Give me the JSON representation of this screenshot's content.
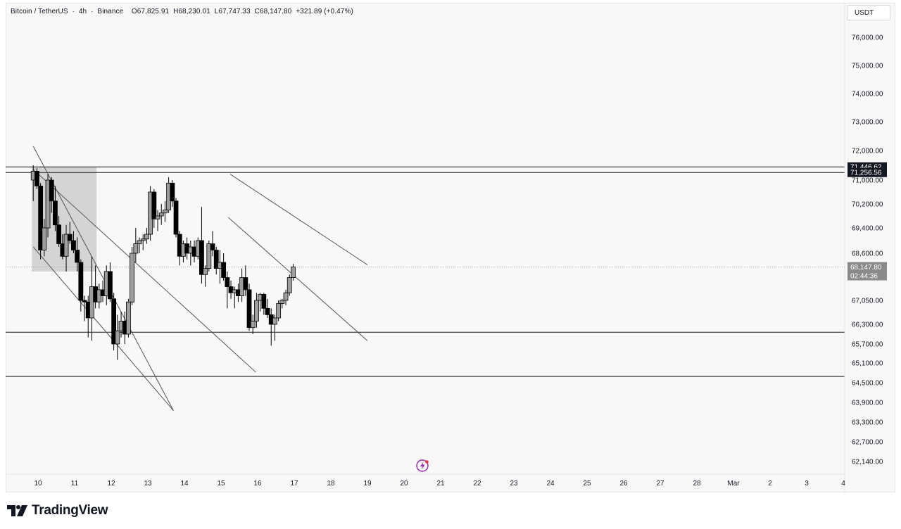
{
  "header": {
    "symbol": "Bitcoin / TetherUS",
    "interval": "4h",
    "exchange": "Binance",
    "ohlc": {
      "open": "O67,825.91",
      "high": "H68,230.01",
      "low": "L67,747.33",
      "close": "C68,147.80",
      "change": "+321.89 (+0.47%)"
    }
  },
  "currency_label": "USDT",
  "brand": {
    "name": "TradingView",
    "logo_icon": "tradingview-logo-icon"
  },
  "event_icon": "lightning-event-icon",
  "colors": {
    "bull_fill": "#9e9e9e",
    "bear_fill": "#000000",
    "zone": "#c8c8c8",
    "background": "#f8f8f8"
  },
  "chart_data": {
    "type": "candlestick",
    "symbol": "Bitcoin / TetherUS",
    "interval": "4h",
    "y_axis": {
      "scale": "nonlinear",
      "ticks": [
        "76,000.00",
        "75,000.00",
        "74,000.00",
        "73,000.00",
        "72,000.00",
        "71,000.00",
        "70,200.00",
        "69,400.00",
        "68,600.00",
        "67,050.00",
        "66,300.00",
        "65,700.00",
        "65,100.00",
        "64,500.00",
        "63,900.00",
        "63,300.00",
        "62,700.00",
        "62,140.00"
      ],
      "range": [
        61800,
        77000
      ]
    },
    "x_axis": {
      "ticks": [
        "10",
        "11",
        "12",
        "13",
        "14",
        "15",
        "16",
        "17",
        "18",
        "19",
        "20",
        "21",
        "22",
        "23",
        "24",
        "25",
        "26",
        "27",
        "28",
        "Mar",
        "2",
        "3",
        "4"
      ]
    },
    "price_tags": [
      {
        "value": "71,446.62",
        "style": "dark"
      },
      {
        "value": "71,256.56",
        "style": "dark"
      },
      {
        "value": "68,147.80",
        "countdown": "02:44:36",
        "style": "gray"
      }
    ],
    "horizontal_lines": [
      71446.62,
      71256.56,
      66060,
      64690
    ],
    "current_price_line": 68147.8,
    "zone_box": {
      "from_day": 9.87,
      "to_day": 11.6,
      "top": 71446.62,
      "bottom": 68000
    },
    "trendlines": [
      {
        "from": [
          9.87,
          72150
        ],
        "to": [
          13.7,
          63650
        ]
      },
      {
        "from": [
          9.87,
          68800
        ],
        "to": [
          13.7,
          63650
        ]
      },
      {
        "from": [
          9.87,
          71360
        ],
        "to": [
          15.95,
          64820
        ]
      },
      {
        "from": [
          15.2,
          69750
        ],
        "to": [
          19.0,
          65800
        ]
      },
      {
        "from": [
          15.25,
          71200
        ],
        "to": [
          19.0,
          68220
        ]
      }
    ],
    "candles": [
      {
        "t": 9.87,
        "o": 71000,
        "h": 71500,
        "l": 70300,
        "c": 71300
      },
      {
        "t": 9.97,
        "o": 71300,
        "h": 71400,
        "l": 70700,
        "c": 70800
      },
      {
        "t": 10.07,
        "o": 70800,
        "h": 70900,
        "l": 68400,
        "c": 68700
      },
      {
        "t": 10.17,
        "o": 68700,
        "h": 69700,
        "l": 68500,
        "c": 69400
      },
      {
        "t": 10.27,
        "o": 69400,
        "h": 71200,
        "l": 69100,
        "c": 71000
      },
      {
        "t": 10.37,
        "o": 71000,
        "h": 71100,
        "l": 69900,
        "c": 70300
      },
      {
        "t": 10.47,
        "o": 70300,
        "h": 70800,
        "l": 69300,
        "c": 69500
      },
      {
        "t": 10.57,
        "o": 69500,
        "h": 69800,
        "l": 68800,
        "c": 68900
      },
      {
        "t": 10.67,
        "o": 68900,
        "h": 69200,
        "l": 68400,
        "c": 68500
      },
      {
        "t": 10.77,
        "o": 68500,
        "h": 69500,
        "l": 68000,
        "c": 69200
      },
      {
        "t": 10.87,
        "o": 69200,
        "h": 69600,
        "l": 68900,
        "c": 69000
      },
      {
        "t": 10.97,
        "o": 69000,
        "h": 69300,
        "l": 68600,
        "c": 68700
      },
      {
        "t": 11.07,
        "o": 68700,
        "h": 69100,
        "l": 68000,
        "c": 68300
      },
      {
        "t": 11.17,
        "o": 68300,
        "h": 68400,
        "l": 66700,
        "c": 67050
      },
      {
        "t": 11.27,
        "o": 67050,
        "h": 67200,
        "l": 66400,
        "c": 67000
      },
      {
        "t": 11.37,
        "o": 67000,
        "h": 67200,
        "l": 65900,
        "c": 66500
      },
      {
        "t": 11.47,
        "o": 66500,
        "h": 68500,
        "l": 65800,
        "c": 67500
      },
      {
        "t": 11.57,
        "o": 67500,
        "h": 68200,
        "l": 66800,
        "c": 67000
      },
      {
        "t": 11.67,
        "o": 67000,
        "h": 67600,
        "l": 66800,
        "c": 67400
      },
      {
        "t": 11.77,
        "o": 67400,
        "h": 67700,
        "l": 67000,
        "c": 67200
      },
      {
        "t": 11.87,
        "o": 67200,
        "h": 68200,
        "l": 66900,
        "c": 68000
      },
      {
        "t": 11.97,
        "o": 68000,
        "h": 68300,
        "l": 67000,
        "c": 67100
      },
      {
        "t": 12.07,
        "o": 67100,
        "h": 67300,
        "l": 65500,
        "c": 65700
      },
      {
        "t": 12.17,
        "o": 65700,
        "h": 66600,
        "l": 65200,
        "c": 66100
      },
      {
        "t": 12.27,
        "o": 66100,
        "h": 66700,
        "l": 65900,
        "c": 66400
      },
      {
        "t": 12.37,
        "o": 66400,
        "h": 66700,
        "l": 65700,
        "c": 66000
      },
      {
        "t": 12.47,
        "o": 66000,
        "h": 67100,
        "l": 65900,
        "c": 67000
      },
      {
        "t": 12.57,
        "o": 67000,
        "h": 68800,
        "l": 66900,
        "c": 68600
      },
      {
        "t": 12.67,
        "o": 68600,
        "h": 69400,
        "l": 68300,
        "c": 68900
      },
      {
        "t": 12.77,
        "o": 68900,
        "h": 69100,
        "l": 68600,
        "c": 69000
      },
      {
        "t": 12.87,
        "o": 69000,
        "h": 69200,
        "l": 68700,
        "c": 69050
      },
      {
        "t": 12.97,
        "o": 69050,
        "h": 69400,
        "l": 68900,
        "c": 69200
      },
      {
        "t": 13.07,
        "o": 69200,
        "h": 70800,
        "l": 69000,
        "c": 70600
      },
      {
        "t": 13.17,
        "o": 70600,
        "h": 70700,
        "l": 69400,
        "c": 69700
      },
      {
        "t": 13.27,
        "o": 69700,
        "h": 70000,
        "l": 69300,
        "c": 69800
      },
      {
        "t": 13.37,
        "o": 69800,
        "h": 70200,
        "l": 69500,
        "c": 69900
      },
      {
        "t": 13.47,
        "o": 69900,
        "h": 70300,
        "l": 69600,
        "c": 70000
      },
      {
        "t": 13.57,
        "o": 70000,
        "h": 71100,
        "l": 69900,
        "c": 70900
      },
      {
        "t": 13.67,
        "o": 70900,
        "h": 71000,
        "l": 70100,
        "c": 70300
      },
      {
        "t": 13.77,
        "o": 70300,
        "h": 70400,
        "l": 69100,
        "c": 69200
      },
      {
        "t": 13.87,
        "o": 69200,
        "h": 69300,
        "l": 68200,
        "c": 68500
      },
      {
        "t": 13.97,
        "o": 68500,
        "h": 69000,
        "l": 68300,
        "c": 68900
      },
      {
        "t": 14.07,
        "o": 68900,
        "h": 69100,
        "l": 68400,
        "c": 68600
      },
      {
        "t": 14.17,
        "o": 68600,
        "h": 69000,
        "l": 68200,
        "c": 68800
      },
      {
        "t": 14.27,
        "o": 68800,
        "h": 69000,
        "l": 68300,
        "c": 68500
      },
      {
        "t": 14.37,
        "o": 68500,
        "h": 69100,
        "l": 68400,
        "c": 69000
      },
      {
        "t": 14.47,
        "o": 69000,
        "h": 70100,
        "l": 67600,
        "c": 67900
      },
      {
        "t": 14.57,
        "o": 67900,
        "h": 68200,
        "l": 67500,
        "c": 68100
      },
      {
        "t": 14.67,
        "o": 68100,
        "h": 69000,
        "l": 68000,
        "c": 68900
      },
      {
        "t": 14.77,
        "o": 68900,
        "h": 69300,
        "l": 68500,
        "c": 68700
      },
      {
        "t": 14.87,
        "o": 68700,
        "h": 68800,
        "l": 67900,
        "c": 68100
      },
      {
        "t": 14.97,
        "o": 68100,
        "h": 68700,
        "l": 67600,
        "c": 68300
      },
      {
        "t": 15.07,
        "o": 68300,
        "h": 68600,
        "l": 67700,
        "c": 67800
      },
      {
        "t": 15.17,
        "o": 67800,
        "h": 68000,
        "l": 66800,
        "c": 67500
      },
      {
        "t": 15.27,
        "o": 67500,
        "h": 67700,
        "l": 67100,
        "c": 67300
      },
      {
        "t": 15.37,
        "o": 67300,
        "h": 67500,
        "l": 66800,
        "c": 67400
      },
      {
        "t": 15.47,
        "o": 67400,
        "h": 67600,
        "l": 67000,
        "c": 67200
      },
      {
        "t": 15.57,
        "o": 67200,
        "h": 68100,
        "l": 67000,
        "c": 67800
      },
      {
        "t": 15.67,
        "o": 67800,
        "h": 68200,
        "l": 67200,
        "c": 67400
      },
      {
        "t": 15.77,
        "o": 67400,
        "h": 67600,
        "l": 66100,
        "c": 66200
      },
      {
        "t": 15.87,
        "o": 66200,
        "h": 66600,
        "l": 66000,
        "c": 66400
      },
      {
        "t": 15.97,
        "o": 66400,
        "h": 67300,
        "l": 66200,
        "c": 67050
      },
      {
        "t": 16.07,
        "o": 67050,
        "h": 67300,
        "l": 66700,
        "c": 67250
      },
      {
        "t": 16.17,
        "o": 67250,
        "h": 67300,
        "l": 66600,
        "c": 66800
      },
      {
        "t": 16.27,
        "o": 66800,
        "h": 67100,
        "l": 66500,
        "c": 66600
      },
      {
        "t": 16.37,
        "o": 66600,
        "h": 66800,
        "l": 65650,
        "c": 66300
      },
      {
        "t": 16.47,
        "o": 66300,
        "h": 66600,
        "l": 65800,
        "c": 66500
      },
      {
        "t": 16.57,
        "o": 66500,
        "h": 67050,
        "l": 66400,
        "c": 66950
      },
      {
        "t": 16.67,
        "o": 66950,
        "h": 67100,
        "l": 66800,
        "c": 67050
      },
      {
        "t": 16.77,
        "o": 67050,
        "h": 67400,
        "l": 66900,
        "c": 67300
      },
      {
        "t": 16.87,
        "o": 67300,
        "h": 67900,
        "l": 67200,
        "c": 67800
      },
      {
        "t": 16.97,
        "o": 67800,
        "h": 68250,
        "l": 67700,
        "c": 68150
      }
    ]
  }
}
